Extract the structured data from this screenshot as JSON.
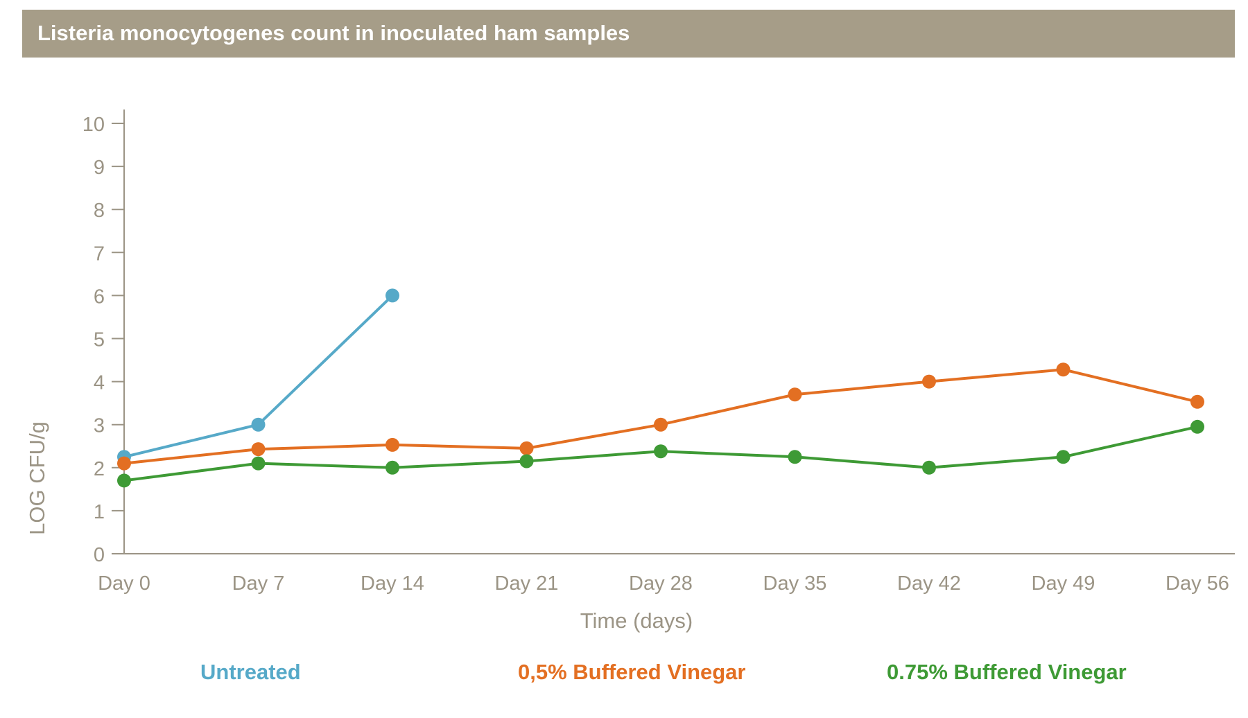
{
  "chart_data": {
    "type": "line",
    "title": "Listeria monocytogenes count in inoculated ham samples",
    "xlabel": "Time (days)",
    "ylabel": "LOG CFU/g",
    "categories": [
      "Day 0",
      "Day 7",
      "Day 14",
      "Day 21",
      "Day 28",
      "Day 35",
      "Day 42",
      "Day 49",
      "Day 56"
    ],
    "ylim": [
      0,
      10
    ],
    "yticks": [
      "0",
      "1",
      "2",
      "3",
      "4",
      "5",
      "6",
      "7",
      "8",
      "9",
      "10"
    ],
    "grid": false,
    "legend_position": "bottom",
    "series": [
      {
        "name": "Untreated",
        "color": "#56a9c8",
        "values": [
          2.25,
          3.0,
          6.0,
          null,
          null,
          null,
          null,
          null,
          null
        ]
      },
      {
        "name": "0,5% Buffered Vinegar",
        "color": "#e36f22",
        "values": [
          2.1,
          2.43,
          2.53,
          2.45,
          3.0,
          3.7,
          4.0,
          4.28,
          3.53
        ]
      },
      {
        "name": "0.75% Buffered Vinegar",
        "color": "#3e9a35",
        "values": [
          1.7,
          2.1,
          2.0,
          2.15,
          2.38,
          2.25,
          2.0,
          2.25,
          2.95
        ]
      }
    ]
  },
  "colors": {
    "title_bar": "#a69d88",
    "axis": "#9b9485"
  }
}
